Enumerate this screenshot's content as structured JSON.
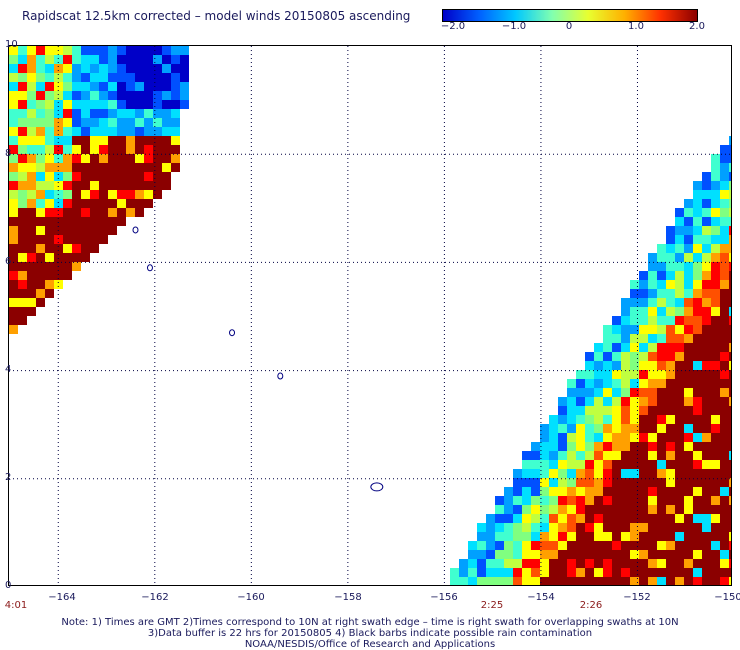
{
  "title": "Rapidscat 12.5km corrected – model winds 20150805 ascending",
  "colorbar": {
    "labels": [
      "−2.0",
      "−1.0",
      "0",
      "1.0",
      "2.0"
    ],
    "values": [
      -2.0,
      -1.0,
      0,
      1.0,
      2.0
    ],
    "colors": [
      "#0000c8",
      "#0060ff",
      "#00c8ff",
      "#80ffb0",
      "#e8ff30",
      "#ffb000",
      "#ff3000",
      "#8b0000"
    ]
  },
  "axes": {
    "lon_min": -165,
    "lon_max": -150,
    "lat_min": 0,
    "lat_max": 10,
    "x_ticks": [
      "−164",
      "−162",
      "−160",
      "−158",
      "−156",
      "−154",
      "−152",
      "−150"
    ],
    "y_ticks": [
      "10",
      "8",
      "6",
      "4",
      "2",
      "0"
    ],
    "grid": true
  },
  "times": [
    {
      "label": "4:01",
      "lon": -164.9
    },
    {
      "label": "2:25",
      "lon": -155.1
    },
    {
      "label": "2:26",
      "lon": -153.1
    }
  ],
  "notes": [
    "Note: 1) Times are GMT 2)Times correspond to 10N at right swath edge – time is right swath for overlapping swaths at 10N",
    "3)Data buffer is 22 hrs for 20150805 4) Black barbs indicate possible rain contamination",
    "NOAA/NESDIS/Office of Research and Applications"
  ],
  "swaths": {
    "left": "upper-left triangular swath, mostly +2.0 (dark red) with blue/cyan negative values in the top",
    "right": "lower-right triangular swath, mostly +2.0 (dark red) with cyan/blue negative values along the left edge"
  }
}
